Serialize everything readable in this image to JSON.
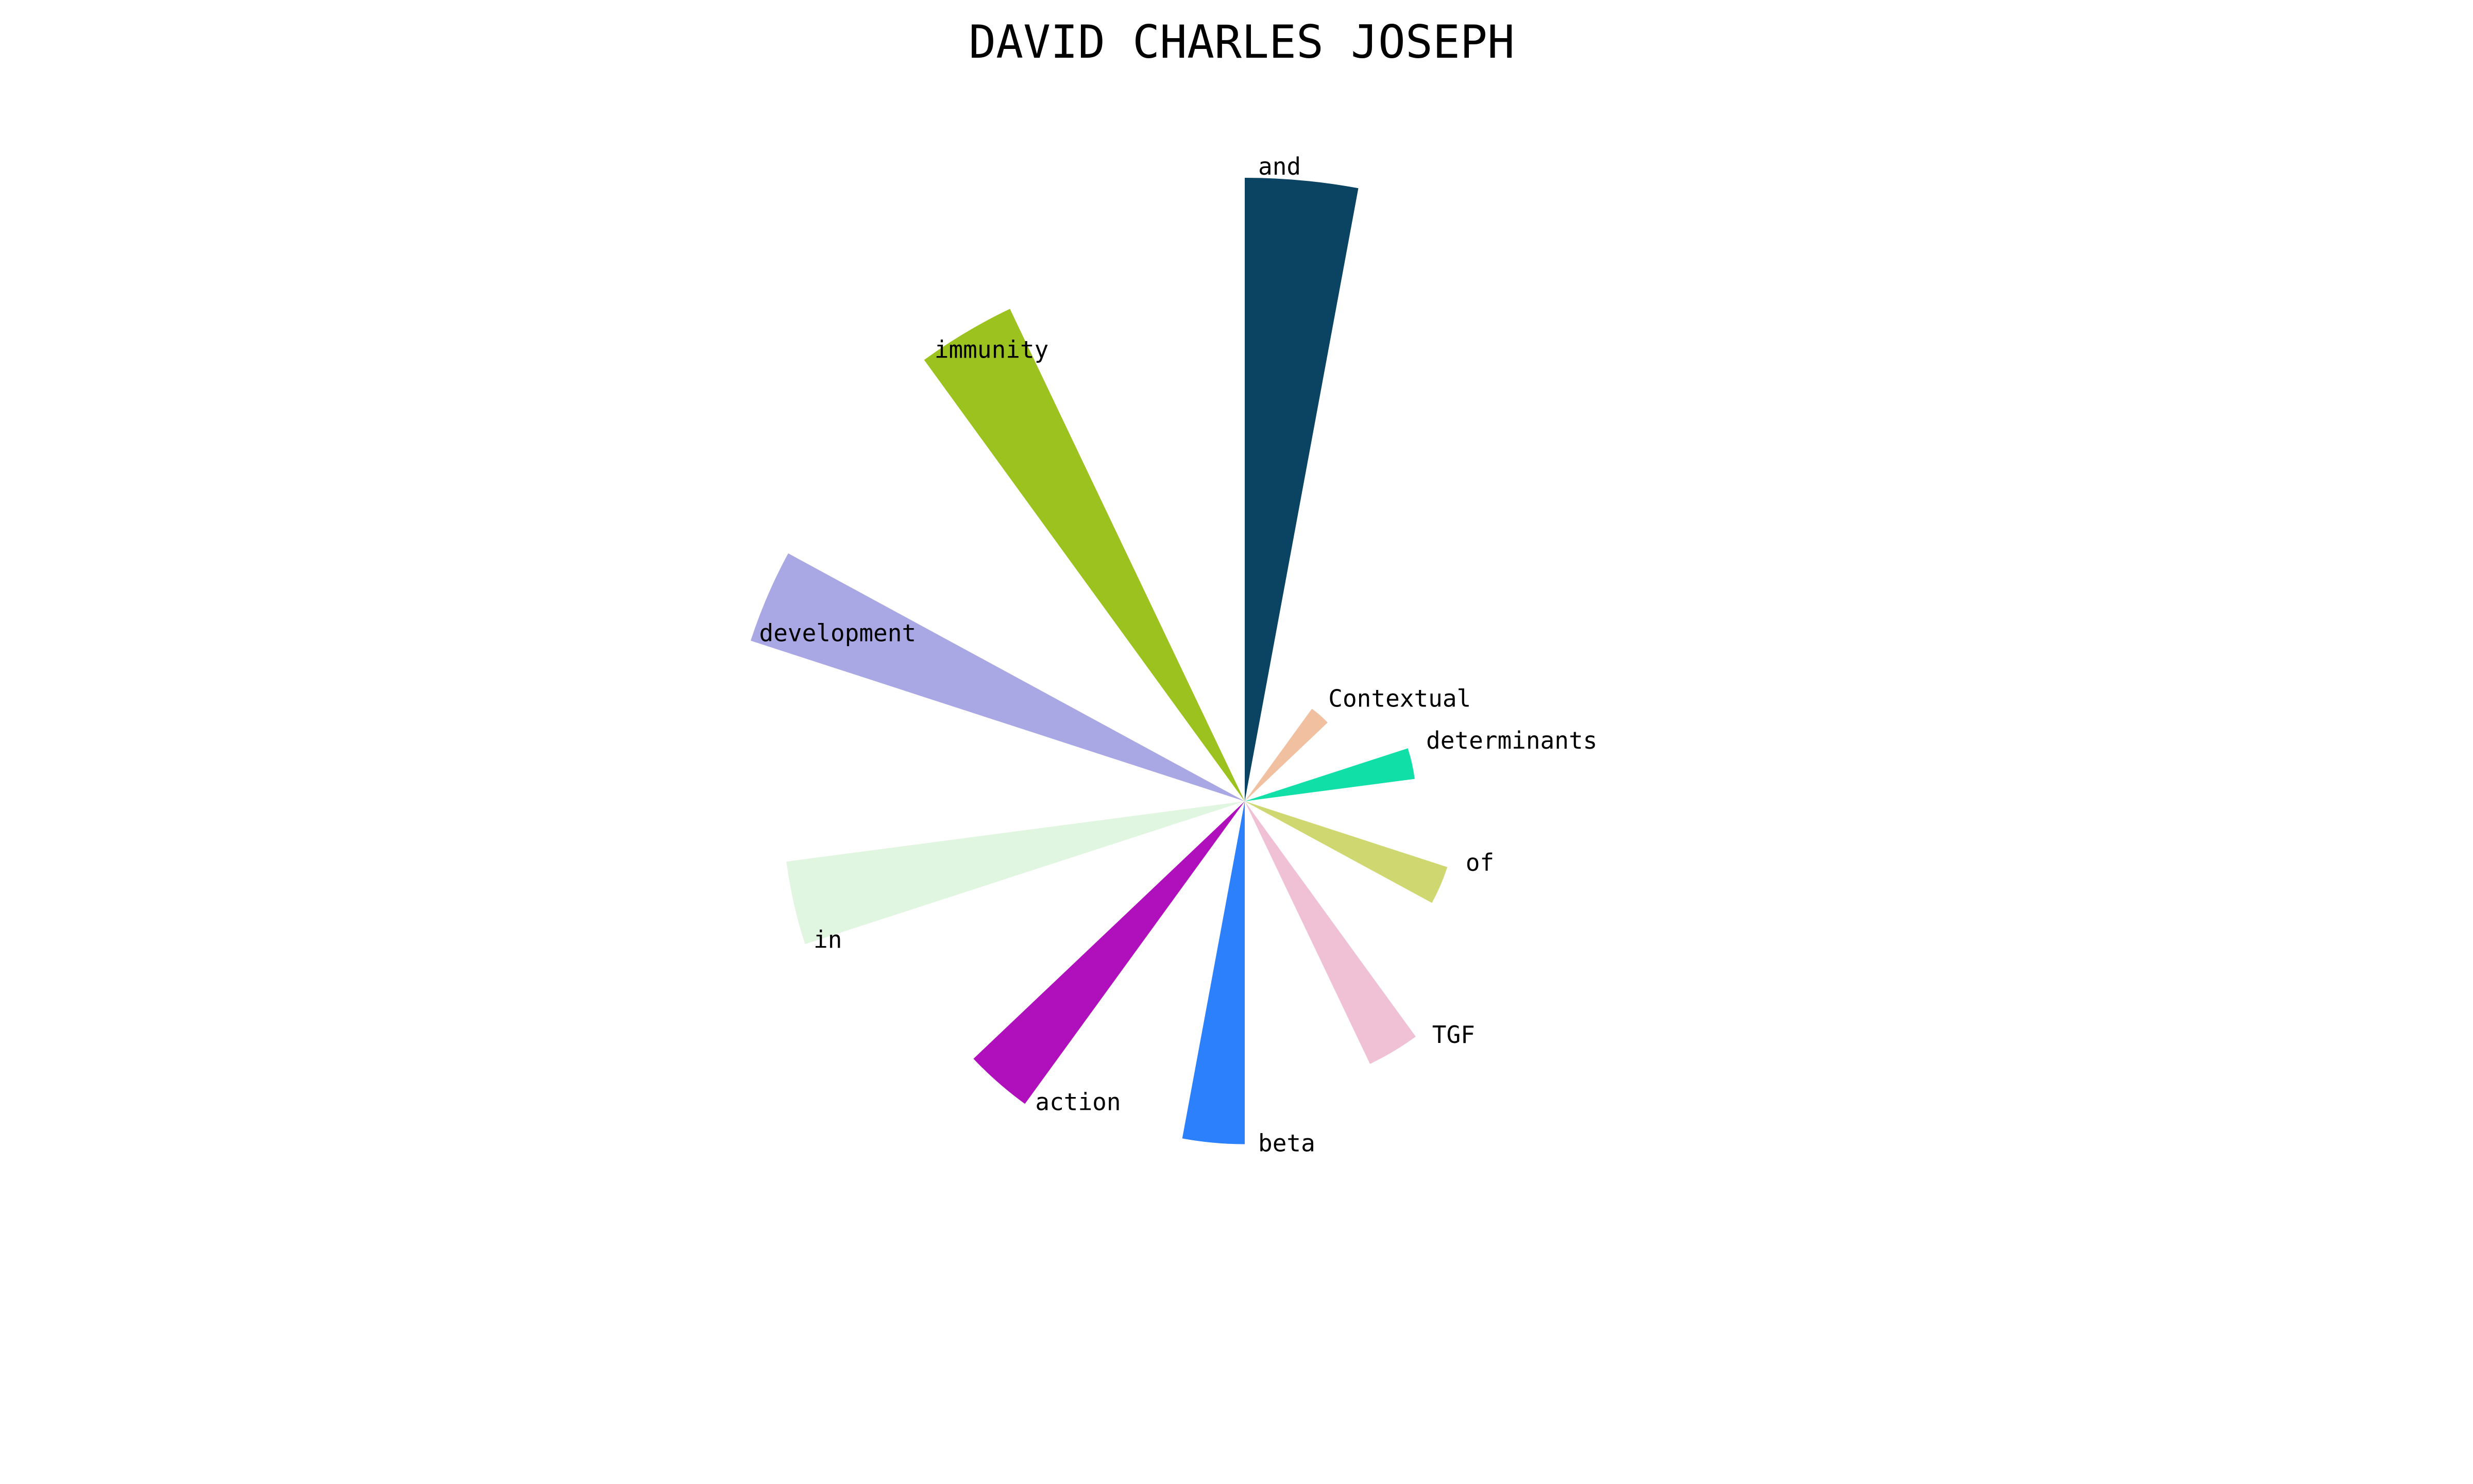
{
  "chart_data": {
    "type": "radial-bar",
    "title": "DAVID CHARLES JOSEPH",
    "categories": [
      "and",
      "Contextual",
      "determinants",
      "of",
      "TGF",
      "beta",
      "action",
      "in",
      "development",
      "immunity"
    ],
    "values": [
      1200,
      220,
      330,
      410,
      560,
      660,
      720,
      890,
      1000,
      1050
    ],
    "colors": [
      "#0b4462",
      "#f0c0a0",
      "#10e0a8",
      "#cfd870",
      "#f0c0d4",
      "#2c80fc",
      "#b010bc",
      "#e0f6e0",
      "#aaa8e4",
      "#9cc220"
    ]
  }
}
